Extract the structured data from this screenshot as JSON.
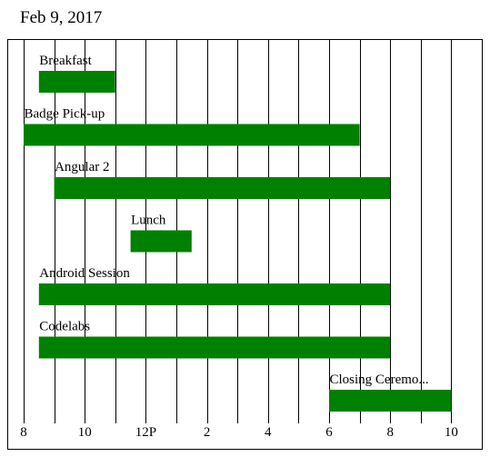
{
  "header": {
    "date": "Feb 9, 2017"
  },
  "chart_data": {
    "type": "timeline",
    "title": "",
    "xlabel": "",
    "ylabel": "",
    "x_range_hours": [
      8,
      10.9
    ],
    "hour_grid": true,
    "bar_color": "#008000",
    "x_ticks": [
      {
        "label": "8",
        "hour": 8
      },
      {
        "label": "10",
        "hour": 10
      },
      {
        "label": "12P",
        "hour": 12
      },
      {
        "label": "2",
        "hour": 14
      },
      {
        "label": "4",
        "hour": 16
      },
      {
        "label": "6",
        "hour": 18
      },
      {
        "label": "8",
        "hour": 20
      },
      {
        "label": "10",
        "hour": 22
      }
    ],
    "events": [
      {
        "label": "Breakfast",
        "start": 8.5,
        "end": 11.0
      },
      {
        "label": "Badge Pick-up",
        "start": 8.0,
        "end": 19.0
      },
      {
        "label": "Angular 2",
        "start": 9.0,
        "end": 20.0
      },
      {
        "label": "Lunch",
        "start": 11.5,
        "end": 13.5
      },
      {
        "label": "Android Session",
        "start": 8.5,
        "end": 20.0
      },
      {
        "label": "Codelabs",
        "start": 8.5,
        "end": 20.0
      },
      {
        "label": "Closing Ceremo...",
        "start": 18.0,
        "end": 22.0
      }
    ]
  }
}
